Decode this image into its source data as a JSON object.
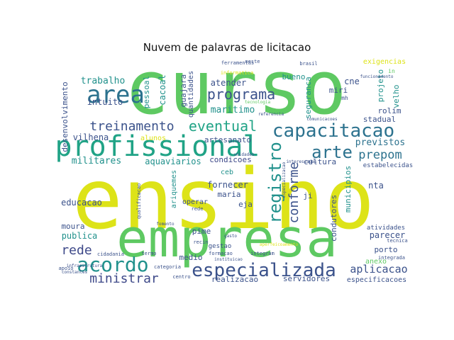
{
  "chart_data": {
    "type": "wordcloud",
    "title": "Nuvem de palavras de licitacao",
    "words": [
      {
        "text": "curso",
        "color": "#5ec962"
      },
      {
        "text": "ensino",
        "color": "#dde318"
      },
      {
        "text": "empresa",
        "color": "#5ec962"
      },
      {
        "text": "profissional",
        "color": "#20a386"
      },
      {
        "text": "capacitacao",
        "color": "#2c728e"
      },
      {
        "text": "especializada",
        "color": "#3b528b"
      },
      {
        "text": "area",
        "color": "#2c728e"
      },
      {
        "text": "acordo",
        "color": "#21918c"
      },
      {
        "text": "arte",
        "color": "#2c728e"
      },
      {
        "text": "registro",
        "color": "#21918c"
      },
      {
        "text": "programa",
        "color": "#3b528b"
      },
      {
        "text": "eventual",
        "color": "#20a386"
      },
      {
        "text": "treinamento",
        "color": "#3b528b"
      },
      {
        "text": "ministrar",
        "color": "#3e4989"
      },
      {
        "text": "conforme",
        "color": "#3b528b"
      },
      {
        "text": "rede",
        "color": "#3e4989"
      },
      {
        "text": "aplicacao",
        "color": "#3b528b"
      },
      {
        "text": "prepom",
        "color": "#2c728e"
      },
      {
        "text": "trabalho",
        "color": "#21918c"
      },
      {
        "text": "intuito",
        "color": "#3b528b"
      },
      {
        "text": "atender",
        "color": "#3b528b"
      },
      {
        "text": "maritimo",
        "color": "#21918c"
      },
      {
        "text": "previstos",
        "color": "#2c728e"
      },
      {
        "text": "aquaviarios",
        "color": "#21918c"
      },
      {
        "text": "militares",
        "color": "#21918c"
      },
      {
        "text": "vilhena",
        "color": "#3b528b"
      },
      {
        "text": "condicoes",
        "color": "#3e4989"
      },
      {
        "text": "fornecer",
        "color": "#3b528b"
      },
      {
        "text": "educacao",
        "color": "#3b528b"
      },
      {
        "text": "maria",
        "color": "#3b528b"
      },
      {
        "text": "eja",
        "color": "#3b528b"
      },
      {
        "text": "publica",
        "color": "#21918c"
      },
      {
        "text": "moura",
        "color": "#3b528b"
      },
      {
        "text": "pime",
        "color": "#3b528b"
      },
      {
        "text": "medio",
        "color": "#3b528b"
      },
      {
        "text": "porto",
        "color": "#3b528b"
      },
      {
        "text": "parecer",
        "color": "#3b528b"
      },
      {
        "text": "condutores",
        "color": "#3b528b"
      },
      {
        "text": "municipios",
        "color": "#21918c"
      },
      {
        "text": "ji",
        "color": "#3b528b"
      },
      {
        "text": "nta",
        "color": "#3b528b"
      },
      {
        "text": "estabelecidas",
        "color": "#3b528b"
      },
      {
        "text": "cultura",
        "color": "#3b528b"
      },
      {
        "text": "servidores",
        "color": "#3b528b"
      },
      {
        "text": "realizacao",
        "color": "#3b528b"
      },
      {
        "text": "especificacoes",
        "color": "#3b528b"
      },
      {
        "text": "anexo",
        "color": "#5ec962"
      },
      {
        "text": "atividades",
        "color": "#3b528b"
      },
      {
        "text": "desenvolvimento",
        "color": "#3b528b"
      },
      {
        "text": "pessoal",
        "color": "#21918c"
      },
      {
        "text": "cacoal",
        "color": "#21918c"
      },
      {
        "text": "guajara",
        "color": "#3b528b"
      },
      {
        "text": "quantidades",
        "color": "#3b528b"
      },
      {
        "text": "bueno",
        "color": "#21918c"
      },
      {
        "text": "cne",
        "color": "#3b528b"
      },
      {
        "text": "miri",
        "color": "#3b528b"
      },
      {
        "text": "rolim",
        "color": "#3b528b"
      },
      {
        "text": "stadual",
        "color": "#3b528b"
      },
      {
        "text": "velho",
        "color": "#21918c"
      },
      {
        "text": "projeto",
        "color": "#21918c"
      },
      {
        "text": "exigencias",
        "color": "#dde318"
      },
      {
        "text": "seguranca",
        "color": "#21918c"
      },
      {
        "text": "alunos",
        "color": "#dde318"
      },
      {
        "text": "artesanato",
        "color": "#3b528b"
      },
      {
        "text": "ariquemes",
        "color": "#21918c"
      },
      {
        "text": "operar",
        "color": "#3b528b"
      },
      {
        "text": "ceb",
        "color": "#21918c"
      },
      {
        "text": "gestao",
        "color": "#3b528b"
      },
      {
        "text": "integram",
        "color": "#3b528b"
      },
      {
        "text": "formacao",
        "color": "#3b528b"
      },
      {
        "text": "recin",
        "color": "#3b528b"
      },
      {
        "text": "termo",
        "color": "#3b528b"
      },
      {
        "text": "categoria",
        "color": "#3b528b"
      },
      {
        "text": "cidadania",
        "color": "#3b528b"
      },
      {
        "text": "tecnica",
        "color": "#3b528b"
      },
      {
        "text": "integrada",
        "color": "#3b528b"
      },
      {
        "text": "ferramentas",
        "color": "#3b528b"
      },
      {
        "text": "informatica",
        "color": "#dde318"
      },
      {
        "text": "tecnologia",
        "color": "#5ec962"
      },
      {
        "text": "referencia",
        "color": "#3b528b"
      },
      {
        "text": "brasil",
        "color": "#3b528b"
      },
      {
        "text": "funcionamento",
        "color": "#3b528b"
      },
      {
        "text": "comunicacoes",
        "color": "#3b528b"
      },
      {
        "text": "mh",
        "color": "#3b528b"
      },
      {
        "text": "neste",
        "color": "#3b528b"
      },
      {
        "text": "in",
        "color": "#5ec962"
      },
      {
        "text": "qualificacao",
        "color": "#3b528b"
      },
      {
        "text": "infraestrutura",
        "color": "#3b528b"
      },
      {
        "text": "apoio",
        "color": "#3b528b"
      },
      {
        "text": "constantes",
        "color": "#3b528b"
      },
      {
        "text": "centro",
        "color": "#3b528b"
      },
      {
        "text": "unidades",
        "color": "#3b528b"
      },
      {
        "text": "aperfeicoamento",
        "color": "#dde318"
      },
      {
        "text": "instituicao",
        "color": "#3b528b"
      },
      {
        "text": "rede",
        "color": "#3b528b"
      },
      {
        "text": "fomento",
        "color": "#3b528b"
      },
      {
        "text": "especializacao",
        "color": "#3b528b"
      },
      {
        "text": "interessadas",
        "color": "#3b528b"
      },
      {
        "text": "gasto",
        "color": "#3b528b"
      }
    ]
  }
}
